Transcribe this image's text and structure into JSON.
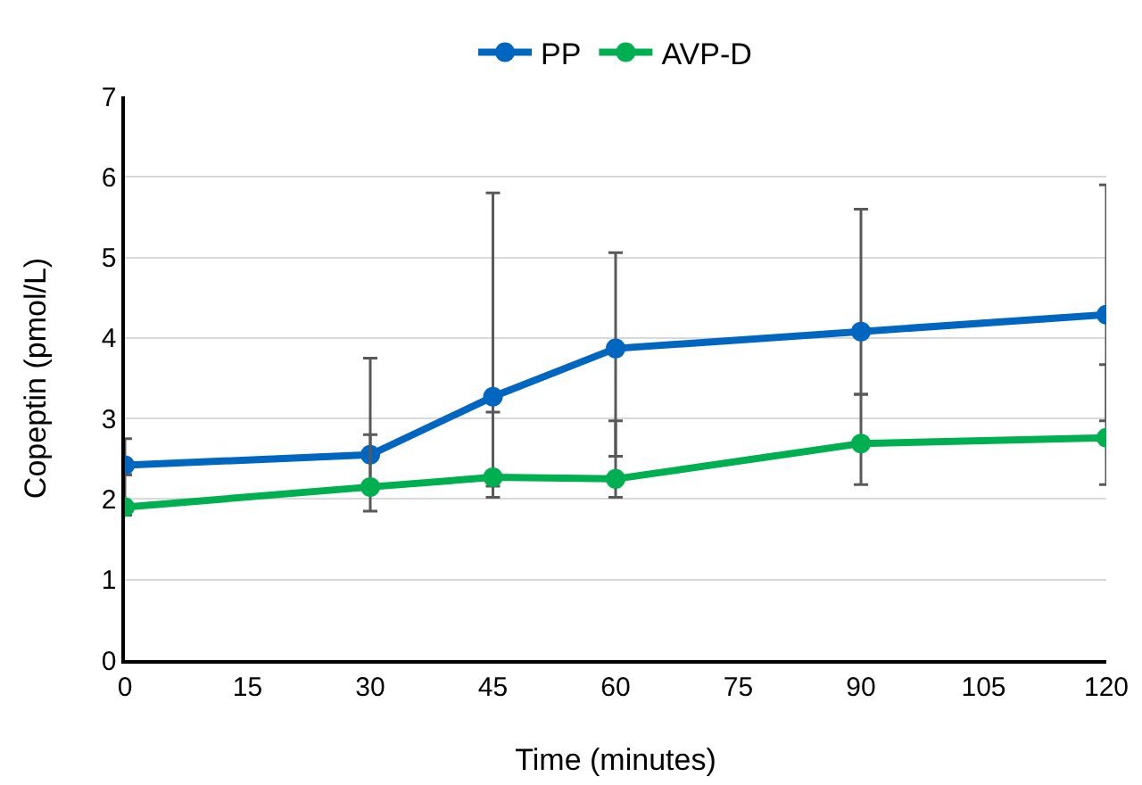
{
  "chart_data": {
    "type": "line",
    "xlabel": "Time (minutes)",
    "ylabel": "Copeptin (pmol/L)",
    "x": [
      0,
      30,
      45,
      60,
      90,
      120
    ],
    "series": [
      {
        "name": "PP",
        "color": "#0066c0",
        "values": [
          2.42,
          2.55,
          3.27,
          3.87,
          4.08,
          4.29
        ],
        "errors": [
          [
            2.3,
            2.75
          ],
          [
            2.1,
            3.75
          ],
          [
            2.16,
            5.8
          ],
          [
            2.53,
            5.06
          ],
          [
            3.3,
            5.6
          ],
          [
            2.97,
            5.9
          ]
        ]
      },
      {
        "name": "AVP-D",
        "color": "#00b050",
        "values": [
          1.9,
          2.15,
          2.27,
          2.25,
          2.69,
          2.76
        ],
        "errors": [
          [
            1.8,
            2.3
          ],
          [
            1.85,
            2.8
          ],
          [
            2.02,
            3.08
          ],
          [
            2.02,
            2.97
          ],
          [
            2.18,
            3.3
          ],
          [
            2.18,
            3.67
          ]
        ]
      }
    ],
    "xlim": [
      0,
      120
    ],
    "xticks": [
      0,
      15,
      30,
      45,
      60,
      75,
      90,
      105,
      120
    ],
    "ylim": [
      0,
      7
    ],
    "yticks": [
      0,
      1,
      2,
      3,
      4,
      5,
      6,
      7
    ],
    "grid": "y",
    "legend": "top",
    "marker": "circle",
    "line_style": "solid"
  }
}
